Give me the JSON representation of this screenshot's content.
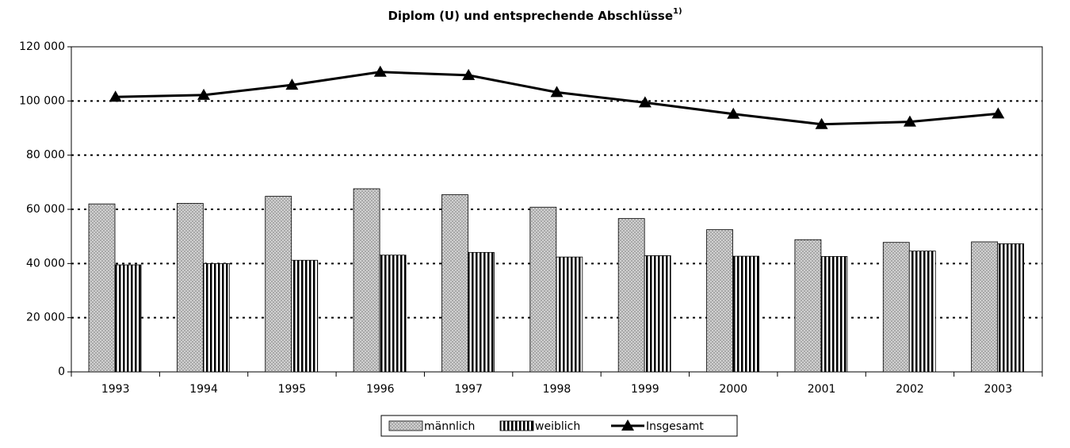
{
  "chart_data": {
    "type": "bar_line",
    "title": "Diplom (U) und entsprechende Abschlüsse",
    "title_note": "1)",
    "categories": [
      "1993",
      "1994",
      "1995",
      "1996",
      "1997",
      "1998",
      "1999",
      "2000",
      "2001",
      "2002",
      "2003"
    ],
    "series": [
      {
        "name": "männlich",
        "type": "bar",
        "color": "#d0d0d0",
        "values": [
          62000,
          62200,
          64800,
          67600,
          65400,
          60800,
          56600,
          52500,
          48800,
          47800,
          48000
        ]
      },
      {
        "name": "weiblich",
        "type": "bar",
        "color": "#000000",
        "values": [
          39500,
          40000,
          41200,
          43100,
          44100,
          42400,
          42900,
          42700,
          42600,
          44600,
          47300
        ]
      },
      {
        "name": "Insgesamt",
        "type": "line",
        "color": "#000000",
        "values": [
          101500,
          102200,
          105900,
          110700,
          109500,
          103200,
          99400,
          95200,
          91400,
          92300,
          95300
        ]
      }
    ],
    "ylim": [
      0,
      120000
    ],
    "yticks": [
      0,
      {
        "value": 20000,
        "label": "20 000"
      },
      {
        "value": 40000,
        "label": "40 000"
      },
      {
        "value": 60000,
        "label": "60 000"
      },
      {
        "value": 80000,
        "label": "80 000"
      },
      {
        "value": 100000,
        "label": "100 000"
      },
      {
        "value": 120000,
        "label": "120 000"
      }
    ],
    "grid": true,
    "legend": "bottom"
  }
}
